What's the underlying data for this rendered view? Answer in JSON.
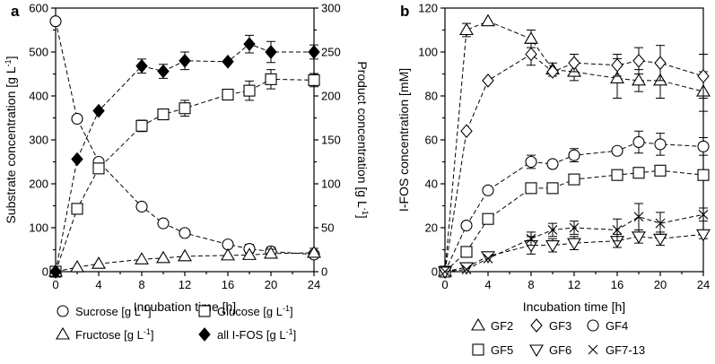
{
  "chart_data": [
    {
      "panel": "a",
      "type": "line",
      "xlabel": "Incubation time [h]",
      "ylabel_left": "Substrate concentration [g L",
      "ylabel_left_sup": "-1",
      "ylabel_left_end": "]",
      "ylabel_right": "Product concentration [g L",
      "ylabel_right_sup": "-1",
      "ylabel_right_end": "]",
      "xticks": [
        0,
        4,
        8,
        12,
        16,
        20,
        24
      ],
      "yticks_left": [
        0,
        100,
        200,
        300,
        400,
        500,
        600
      ],
      "yticks_right": [
        0,
        50,
        100,
        150,
        200,
        250,
        300
      ],
      "xlim": [
        0,
        24
      ],
      "ylim_left": [
        0,
        600
      ],
      "ylim_right": [
        0,
        300
      ],
      "series": [
        {
          "name": "Sucrose",
          "legend": "Sucrose [g L",
          "marker": "circle",
          "axis": "left",
          "x": [
            0,
            2,
            4,
            8,
            10,
            12,
            16,
            18,
            20,
            24
          ],
          "y": [
            570,
            348,
            250,
            148,
            110,
            88,
            62,
            52,
            46,
            39
          ],
          "err": [
            0,
            0,
            0,
            0,
            0,
            0,
            5,
            10,
            10,
            8
          ]
        },
        {
          "name": "Glucose",
          "legend": "Glucose [g L",
          "marker": "square",
          "axis": "left",
          "x": [
            0,
            2,
            4,
            8,
            10,
            12,
            16,
            18,
            20,
            24
          ],
          "y": [
            0,
            143,
            235,
            332,
            358,
            372,
            403,
            412,
            438,
            436
          ],
          "err": [
            0,
            0,
            0,
            13,
            0,
            18,
            12,
            22,
            22,
            15
          ]
        },
        {
          "name": "Fructose",
          "legend": "Fructose [g L",
          "marker": "triangle-up",
          "axis": "left",
          "x": [
            0,
            2,
            4,
            8,
            10,
            12,
            16,
            18,
            20,
            24
          ],
          "y": [
            0,
            10,
            18,
            28,
            31,
            35,
            37,
            38,
            41,
            43
          ],
          "err": [
            0,
            0,
            0,
            0,
            0,
            0,
            0,
            0,
            10,
            10
          ]
        },
        {
          "name": "all I-FOS",
          "legend": "all I-FOS [g L",
          "marker": "diamond-filled",
          "axis": "right",
          "x": [
            0,
            2,
            4,
            8,
            10,
            12,
            16,
            18,
            20,
            24
          ],
          "y": [
            0,
            128,
            183,
            234,
            228,
            240,
            239,
            259,
            250,
            250
          ],
          "err": [
            0,
            0,
            0,
            8,
            8,
            10,
            0,
            10,
            12,
            8
          ]
        }
      ]
    },
    {
      "panel": "b",
      "type": "line",
      "xlabel": "Incubation time [h]",
      "ylabel": "I-FOS concentration [mM]",
      "xticks": [
        0,
        4,
        8,
        12,
        16,
        20,
        24
      ],
      "yticks": [
        0,
        20,
        40,
        60,
        80,
        100,
        120
      ],
      "xlim": [
        0,
        24
      ],
      "ylim": [
        0,
        120
      ],
      "series": [
        {
          "name": "GF2",
          "marker": "triangle-up",
          "x": [
            0,
            2,
            4,
            8,
            10,
            12,
            16,
            18,
            20,
            24
          ],
          "y": [
            0,
            110,
            114,
            106,
            92,
            91,
            88,
            87,
            87,
            82
          ],
          "err": [
            0,
            3,
            0,
            4,
            3,
            4,
            9,
            5,
            8,
            9
          ]
        },
        {
          "name": "GF3",
          "marker": "diamond",
          "x": [
            0,
            2,
            4,
            8,
            10,
            12,
            16,
            18,
            20,
            24
          ],
          "y": [
            0,
            64,
            87,
            99,
            91,
            95,
            94,
            96,
            95,
            89
          ],
          "err": [
            0,
            0,
            0,
            5,
            0,
            4,
            5,
            6,
            8,
            10
          ]
        },
        {
          "name": "GF4",
          "marker": "circle",
          "x": [
            0,
            2,
            4,
            8,
            10,
            12,
            16,
            18,
            20,
            24
          ],
          "y": [
            0,
            21,
            37,
            50,
            49,
            53,
            55,
            59,
            58,
            57
          ],
          "err": [
            0,
            0,
            0,
            3,
            0,
            3,
            0,
            5,
            5,
            4
          ]
        },
        {
          "name": "GF5",
          "marker": "square",
          "x": [
            0,
            2,
            4,
            8,
            10,
            12,
            16,
            18,
            20,
            24
          ],
          "y": [
            0,
            9,
            24,
            38,
            38,
            42,
            44,
            45,
            46,
            44
          ],
          "err": [
            0,
            0,
            0,
            0,
            0,
            0,
            2,
            2,
            2,
            2
          ]
        },
        {
          "name": "GF6",
          "marker": "triangle-down",
          "x": [
            0,
            2,
            4,
            8,
            10,
            12,
            16,
            18,
            20,
            24
          ],
          "y": [
            0,
            2,
            7,
            12,
            12,
            13,
            14,
            16,
            15,
            17
          ],
          "err": [
            0,
            0,
            0,
            4,
            3,
            3,
            3,
            3,
            3,
            2
          ]
        },
        {
          "name": "GF7-13",
          "marker": "x",
          "x": [
            0,
            2,
            4,
            8,
            10,
            12,
            16,
            18,
            20,
            24
          ],
          "y": [
            0,
            1,
            6,
            15,
            19,
            20,
            19,
            25,
            22,
            26
          ],
          "err": [
            0,
            0,
            0,
            3,
            3,
            3,
            5,
            6,
            5,
            3
          ]
        }
      ]
    }
  ]
}
